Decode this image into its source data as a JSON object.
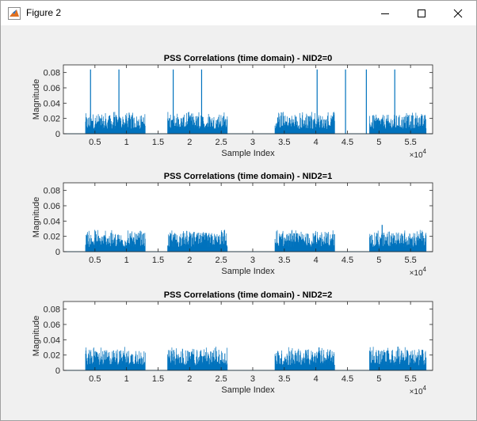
{
  "window": {
    "title": "Figure 2",
    "icon": "matlab-figure-icon",
    "controls": [
      "minimize-icon",
      "maximize-icon",
      "close-icon"
    ]
  },
  "colors": {
    "line": "#0072bd",
    "axes_bg": "#ffffff",
    "figure_bg": "#f0f0f0",
    "axis": "#262626"
  },
  "chart_data": [
    {
      "type": "line",
      "title": "PSS Correlations (time domain) - NID2=0",
      "xlabel": "Sample Index",
      "ylabel": "Magnitude",
      "xlim": [
        0,
        58500
      ],
      "ylim": [
        0,
        0.09
      ],
      "xticks": [
        5000,
        10000,
        15000,
        20000,
        25000,
        30000,
        35000,
        40000,
        45000,
        50000,
        55000
      ],
      "xtick_labels": [
        "0.5",
        "1",
        "1.5",
        "2",
        "2.5",
        "3",
        "3.5",
        "4",
        "4.5",
        "5",
        "5.5"
      ],
      "xexponent": "×10",
      "xexponent_power": "4",
      "yticks": [
        0,
        0.02,
        0.04,
        0.06,
        0.08
      ],
      "ytick_labels": [
        "0",
        "0.02",
        "0.04",
        "0.06",
        "0.08"
      ],
      "grid": false,
      "noise_bursts": [
        [
          3500,
          13000
        ],
        [
          16500,
          26000
        ],
        [
          33500,
          43000
        ],
        [
          48500,
          57500
        ]
      ],
      "noise_peak": 0.025,
      "peaks": [
        [
          4300,
          0.084
        ],
        [
          8800,
          0.084
        ],
        [
          17400,
          0.084
        ],
        [
          21900,
          0.084
        ],
        [
          40200,
          0.084
        ],
        [
          44700,
          0.084
        ],
        [
          48000,
          0.084
        ],
        [
          52500,
          0.084
        ]
      ]
    },
    {
      "type": "line",
      "title": "PSS Correlations (time domain) - NID2=1",
      "xlabel": "Sample Index",
      "ylabel": "Magnitude",
      "xlim": [
        0,
        58500
      ],
      "ylim": [
        0,
        0.09
      ],
      "xticks": [
        5000,
        10000,
        15000,
        20000,
        25000,
        30000,
        35000,
        40000,
        45000,
        50000,
        55000
      ],
      "xtick_labels": [
        "0.5",
        "1",
        "1.5",
        "2",
        "2.5",
        "3",
        "3.5",
        "4",
        "4.5",
        "5",
        "5.5"
      ],
      "xexponent": "×10",
      "xexponent_power": "4",
      "yticks": [
        0,
        0.02,
        0.04,
        0.06,
        0.08
      ],
      "ytick_labels": [
        "0",
        "0.02",
        "0.04",
        "0.06",
        "0.08"
      ],
      "grid": false,
      "noise_bursts": [
        [
          3500,
          13000
        ],
        [
          16500,
          26000
        ],
        [
          33500,
          43000
        ],
        [
          48500,
          57500
        ]
      ],
      "noise_peak": 0.025,
      "peaks": [
        [
          50500,
          0.035
        ]
      ]
    },
    {
      "type": "line",
      "title": "PSS Correlations (time domain) - NID2=2",
      "xlabel": "Sample Index",
      "ylabel": "Magnitude",
      "xlim": [
        0,
        58500
      ],
      "ylim": [
        0,
        0.09
      ],
      "xticks": [
        5000,
        10000,
        15000,
        20000,
        25000,
        30000,
        35000,
        40000,
        45000,
        50000,
        55000
      ],
      "xtick_labels": [
        "0.5",
        "1",
        "1.5",
        "2",
        "2.5",
        "3",
        "3.5",
        "4",
        "4.5",
        "5",
        "5.5"
      ],
      "xexponent": "×10",
      "xexponent_power": "4",
      "yticks": [
        0,
        0.02,
        0.04,
        0.06,
        0.08
      ],
      "ytick_labels": [
        "0",
        "0.02",
        "0.04",
        "0.06",
        "0.08"
      ],
      "grid": false,
      "noise_bursts": [
        [
          3500,
          13000
        ],
        [
          16500,
          26000
        ],
        [
          33500,
          43000
        ],
        [
          48500,
          57500
        ]
      ],
      "noise_peak": 0.027,
      "peaks": [
        [
          40500,
          0.03
        ],
        [
          53000,
          0.031
        ]
      ]
    }
  ]
}
